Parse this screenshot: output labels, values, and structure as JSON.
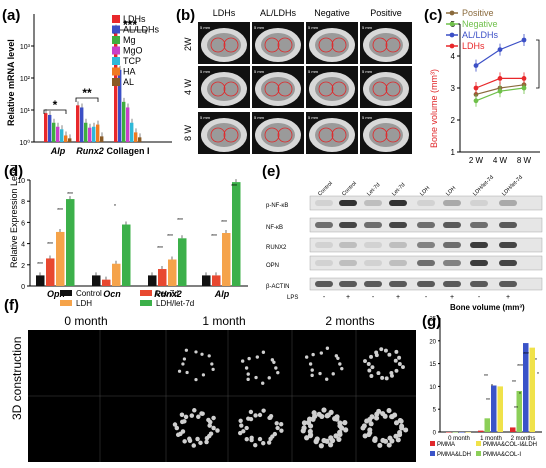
{
  "panel_labels": [
    "(a)",
    "(b)",
    "(c)",
    "(d)",
    "(e)",
    "(f)",
    "(g)"
  ],
  "colors": {
    "LDHs": "#e8282b",
    "AL/LDHs": "#3b4fc6",
    "Mg": "#3fae3f",
    "MgO": "#c93fc9",
    "TCP": "#2fb9d8",
    "HA": "#f07a20",
    "AL": "#8a5a24",
    "Positive": "#8a6a3c",
    "Negative": "#6fc04a",
    "Control": "#111111",
    "LDH": "#f5a34a",
    "Let7": "#e84830",
    "LDHlet7": "#3cb04a",
    "PMMA": "#e0282b",
    "PMMA_LDH": "#3a53c8",
    "PMMA_COL_I_LDH": "#f0e24a",
    "PMMA_COL_I": "#8ccf58"
  },
  "panel_a": {
    "ylabel": "Relative mRNA level",
    "legend": [
      "LDHs",
      "AL/LDHs",
      "Mg",
      "MgO",
      "TCP",
      "HA",
      "AL"
    ],
    "sig": [
      "*",
      "**",
      "***"
    ],
    "yticks": [
      "10³",
      "10²",
      "10¹",
      "10⁰"
    ],
    "chart_data": {
      "type": "bar",
      "yscale": "log",
      "ylim": [
        1,
        10000
      ],
      "categories": [
        "Alp",
        "Runx2",
        "Collagen I"
      ],
      "series": [
        {
          "name": "LDHs",
          "values": [
            8,
            14,
            3500
          ]
        },
        {
          "name": "AL/LDHs",
          "values": [
            7,
            12,
            180
          ]
        },
        {
          "name": "Mg",
          "values": [
            4,
            4,
            18
          ]
        },
        {
          "name": "MgO",
          "values": [
            3,
            2.8,
            12
          ]
        },
        {
          "name": "TCP",
          "values": [
            2.5,
            3,
            4
          ]
        },
        {
          "name": "HA",
          "values": [
            1.6,
            3.5,
            2
          ]
        },
        {
          "name": "AL",
          "values": [
            1.3,
            1.5,
            1.4
          ]
        }
      ]
    }
  },
  "panel_b": {
    "columns": [
      "LDHs",
      "AL/LDHs",
      "Negative",
      "Positive"
    ],
    "rows": [
      "2W",
      "4 W",
      "8 W"
    ],
    "scale": "5 mm"
  },
  "panel_c": {
    "ylabel": "Bone volume (mm³)",
    "legend": [
      "Positive",
      "Negative",
      "AL/LDHs",
      "LDHs"
    ],
    "sig": "**",
    "yticks": [
      "1",
      "2",
      "3",
      "4",
      "5"
    ],
    "chart_data": {
      "type": "line",
      "categories": [
        "2 W",
        "4 W",
        "8 W"
      ],
      "ylim": [
        1,
        5
      ],
      "series": [
        {
          "name": "Positive",
          "values": [
            2.8,
            3.0,
            3.1
          ]
        },
        {
          "name": "Negative",
          "values": [
            2.6,
            2.9,
            3.0
          ]
        },
        {
          "name": "AL/LDHs",
          "values": [
            3.7,
            4.2,
            4.5
          ]
        },
        {
          "name": "LDHs",
          "values": [
            3.0,
            3.3,
            3.3
          ]
        }
      ]
    }
  },
  "panel_d": {
    "ylabel": "Relative Expression Level",
    "yticks": [
      "0",
      "2",
      "4",
      "6",
      "8",
      "10"
    ],
    "legend": [
      "Control",
      "Let-7d",
      "LDH",
      "LDH/let-7d"
    ],
    "chart_data": {
      "type": "bar",
      "ylim": [
        0,
        10
      ],
      "categories": [
        "Opn",
        "Ocn",
        "Runx2",
        "Alp"
      ],
      "series": [
        {
          "name": "Control",
          "values": [
            1,
            1,
            1,
            1
          ]
        },
        {
          "name": "Let-7d",
          "values": [
            2.6,
            0.6,
            1.6,
            1.0
          ]
        },
        {
          "name": "LDH",
          "values": [
            5.1,
            2.1,
            2.5,
            5.0
          ]
        },
        {
          "name": "LDH/let-7d",
          "values": [
            8.2,
            5.8,
            4.5,
            9.8
          ]
        }
      ]
    }
  },
  "panel_e": {
    "lanes": [
      "Control",
      "Control",
      "Let-7d",
      "Let-7d",
      "LDH",
      "LDH",
      "LDH/let-7d",
      "LDH/let-7d"
    ],
    "bands": [
      "p-NF-κB",
      "NF-κB",
      "RUNX2",
      "OPN",
      "β-ACTIN"
    ],
    "lps_label": "LPS",
    "lps": [
      "-",
      "+",
      "-",
      "+",
      "-",
      "+",
      "-",
      "+"
    ]
  },
  "panel_f": {
    "columns": [
      "0 month",
      "1 month",
      "2 months"
    ],
    "side_label": "3D construction"
  },
  "panel_g": {
    "title": "Bone volume (mm³)",
    "yticks": [
      "0",
      "5",
      "10",
      "15",
      "20",
      "25"
    ],
    "legend": [
      "PMMA",
      "PMMA&COL-I&LDH",
      "PMMA&LDH",
      "PMMA&COL-I"
    ],
    "sig_labels": [
      "**",
      "*",
      "**",
      "**",
      "*",
      "**",
      "***",
      "***",
      "*",
      "*"
    ],
    "chart_data": {
      "type": "bar",
      "ylim": [
        0,
        25
      ],
      "categories": [
        "0 month",
        "1 month",
        "2 months"
      ],
      "series": [
        {
          "name": "PMMA",
          "values": [
            0,
            0.3,
            1.0
          ]
        },
        {
          "name": "PMMA&COL-I",
          "values": [
            0,
            3.0,
            9.0
          ]
        },
        {
          "name": "PMMA&LDH",
          "values": [
            0,
            10.2,
            19.5
          ]
        },
        {
          "name": "PMMA&COL-I&LDH",
          "values": [
            0,
            10.0,
            18.5
          ]
        }
      ]
    }
  }
}
